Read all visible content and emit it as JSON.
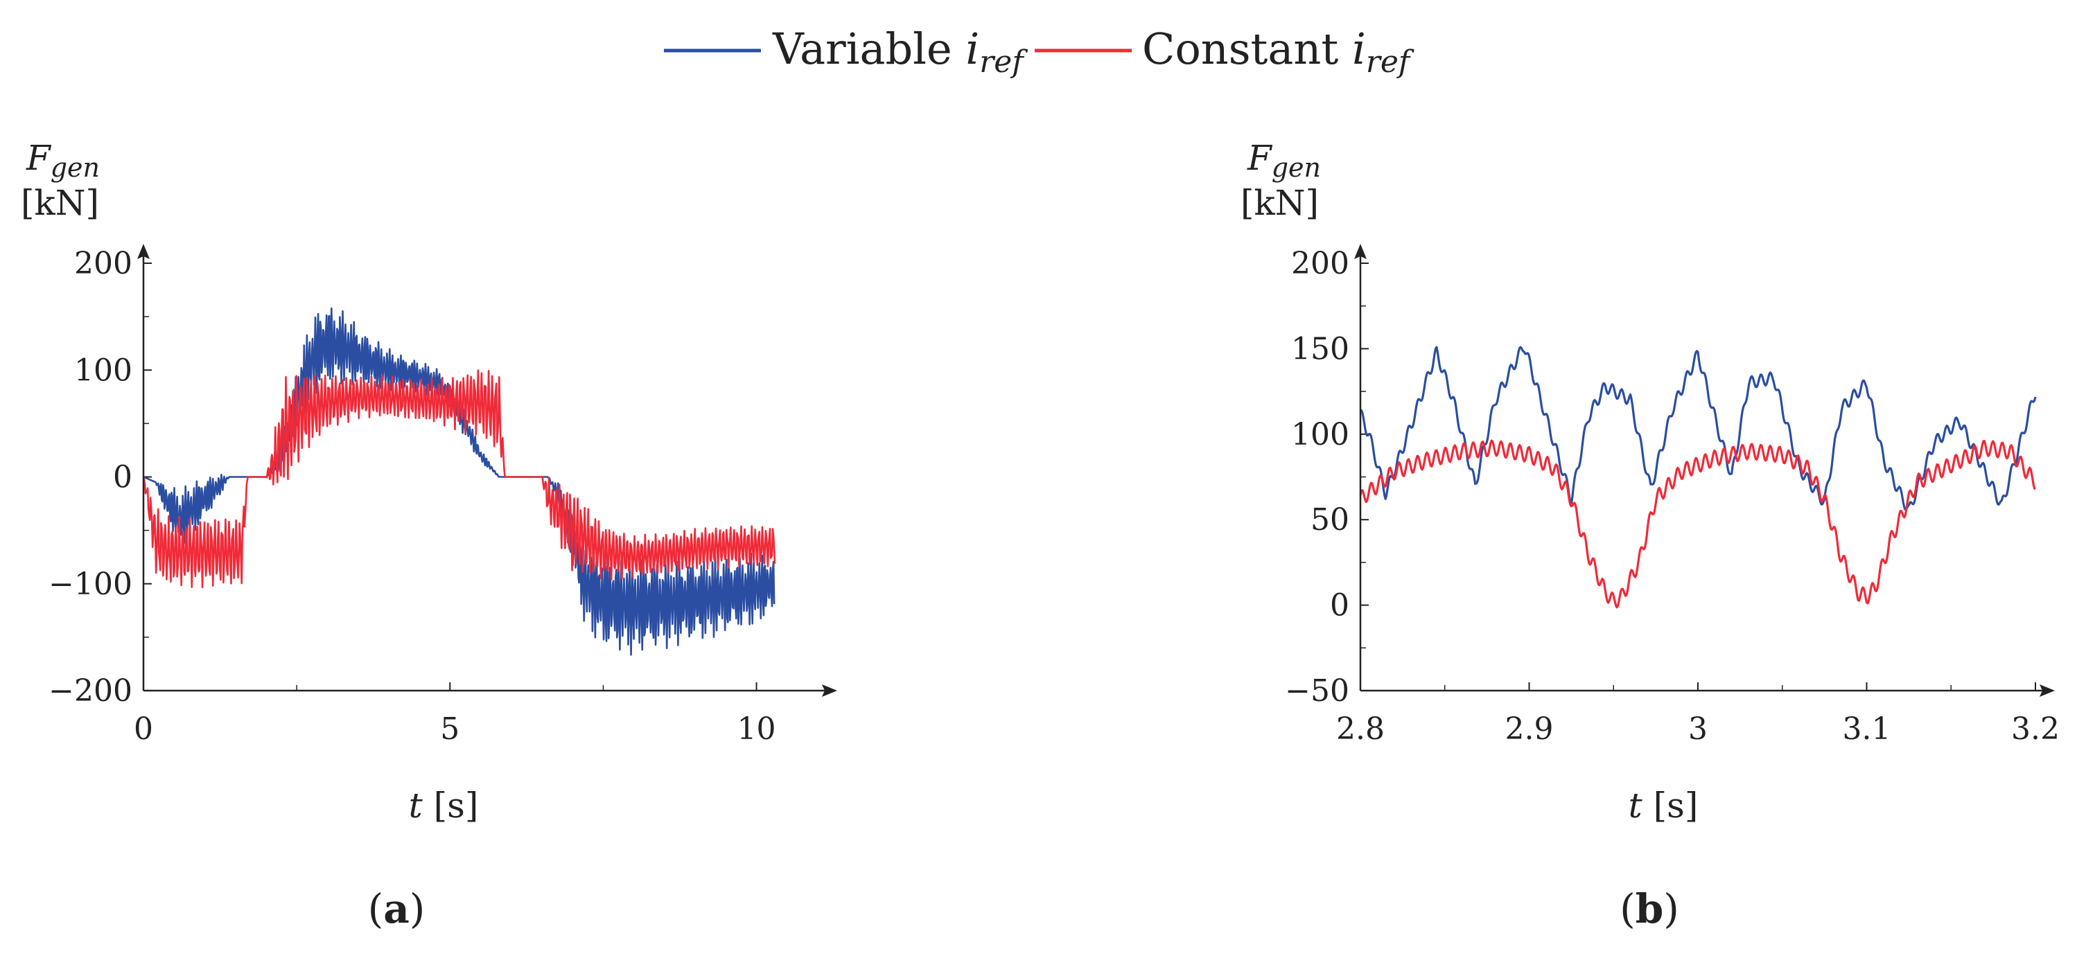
{
  "legend": {
    "entries": [
      {
        "name": "Variable",
        "sub": "ref",
        "var": "i",
        "color": "#2b4ea2"
      },
      {
        "name": "Constant",
        "sub": "ref",
        "var": "i",
        "color": "#f02a38"
      }
    ]
  },
  "chart_data": [
    {
      "type": "line",
      "panel_label": "a",
      "ylabel_var": "F",
      "ylabel_sub": "gen",
      "ylabel_unit": "[kN]",
      "xlabel_var": "t",
      "xlabel_unit": "[s]",
      "xlim": [
        0,
        11
      ],
      "ylim": [
        -200,
        200
      ],
      "xticks": [
        0,
        5,
        10
      ],
      "xtick_labels": [
        "0",
        "5",
        "10"
      ],
      "yticks": [
        -200,
        -100,
        0,
        100,
        200
      ],
      "ytick_labels": [
        "−200",
        "−100",
        "0",
        "100",
        "200"
      ],
      "series": [
        {
          "name": "Variable i_ref",
          "color": "#2b4ea2",
          "x": [
            0,
            0.2,
            0.4,
            0.6,
            0.8,
            1.0,
            1.2,
            1.4,
            1.6,
            1.8,
            2.0,
            2.2,
            2.4,
            2.6,
            2.8,
            3.0,
            3.3,
            3.6,
            4.0,
            4.4,
            4.8,
            5.0,
            5.2,
            5.5,
            5.8,
            6.0,
            6.3,
            6.6,
            6.8,
            7.0,
            7.2,
            7.5,
            8.0,
            8.5,
            9.0,
            9.5,
            10.0,
            10.3
          ],
          "values": [
            0,
            -5,
            -25,
            -40,
            -30,
            -20,
            -10,
            0,
            0,
            0,
            0,
            15,
            50,
            90,
            115,
            125,
            120,
            110,
            100,
            95,
            88,
            75,
            55,
            20,
            0,
            0,
            0,
            0,
            -20,
            -60,
            -100,
            -115,
            -120,
            -118,
            -115,
            -110,
            -105,
            -100
          ],
          "band": [
            0,
            0,
            15,
            20,
            20,
            15,
            10,
            0,
            0,
            0,
            0,
            10,
            20,
            25,
            30,
            30,
            25,
            20,
            15,
            12,
            10,
            10,
            10,
            5,
            0,
            0,
            0,
            0,
            10,
            20,
            30,
            35,
            35,
            32,
            30,
            28,
            25,
            20
          ]
        },
        {
          "name": "Constant i_ref",
          "color": "#f02a38",
          "x": [
            0,
            0.2,
            0.4,
            0.8,
            1.2,
            1.6,
            1.7,
            2.0,
            2.1,
            2.3,
            2.6,
            3.0,
            3.5,
            4.0,
            4.5,
            5.0,
            5.5,
            5.8,
            5.9,
            6.5,
            6.6,
            7.0,
            7.5,
            8.0,
            8.5,
            9.0,
            9.5,
            10.0,
            10.3
          ],
          "values": [
            0,
            -60,
            -70,
            -70,
            -70,
            -70,
            0,
            0,
            10,
            40,
            60,
            70,
            75,
            75,
            72,
            70,
            70,
            60,
            0,
            0,
            -20,
            -50,
            -70,
            -75,
            -72,
            -68,
            -65,
            -65,
            -65
          ],
          "band": [
            0,
            25,
            25,
            25,
            25,
            25,
            0,
            0,
            15,
            40,
            30,
            20,
            15,
            15,
            15,
            18,
            25,
            30,
            0,
            0,
            15,
            30,
            20,
            15,
            15,
            15,
            15,
            15,
            15
          ]
        }
      ]
    },
    {
      "type": "line",
      "panel_label": "b",
      "ylabel_var": "F",
      "ylabel_sub": "gen",
      "ylabel_unit": "[kN]",
      "xlabel_var": "t",
      "xlabel_unit": "[s]",
      "xlim": [
        2.8,
        3.2
      ],
      "ylim": [
        -50,
        200
      ],
      "xticks": [
        2.8,
        2.9,
        3.0,
        3.1,
        3.2
      ],
      "xtick_labels": [
        "2.8",
        "2.9",
        "3",
        "3.1",
        "3.2"
      ],
      "yticks": [
        -50,
        0,
        50,
        100,
        150,
        200
      ],
      "ytick_labels": [
        "−50",
        "0",
        "50",
        "100",
        "150",
        "200"
      ],
      "series": [
        {
          "name": "Variable i_ref",
          "color": "#2b4ea2",
          "x": [
            2.8,
            2.805,
            2.815,
            2.83,
            2.845,
            2.855,
            2.868,
            2.88,
            2.897,
            2.91,
            2.925,
            2.935,
            2.945,
            2.96,
            2.972,
            2.985,
            3.0,
            3.01,
            3.02,
            3.03,
            3.045,
            3.06,
            3.075,
            3.085,
            3.1,
            3.11,
            3.125,
            3.14,
            3.155,
            3.165,
            3.18,
            3.2
          ],
          "values": [
            112,
            100,
            65,
            105,
            148,
            120,
            70,
            120,
            152,
            110,
            62,
            110,
            128,
            120,
            68,
            115,
            147,
            110,
            75,
            130,
            133,
            80,
            60,
            115,
            130,
            85,
            55,
            95,
            108,
            88,
            58,
            125
          ]
        },
        {
          "name": "Constant i_ref",
          "color": "#f02a38",
          "x": [
            2.8,
            2.82,
            2.84,
            2.86,
            2.88,
            2.9,
            2.915,
            2.925,
            2.935,
            2.945,
            2.95,
            2.955,
            2.965,
            2.975,
            2.99,
            3.01,
            3.03,
            3.05,
            3.065,
            3.075,
            3.085,
            3.095,
            3.1,
            3.105,
            3.115,
            3.13,
            3.15,
            3.17,
            3.185,
            3.2
          ],
          "values": [
            62,
            78,
            85,
            90,
            92,
            88,
            80,
            62,
            30,
            8,
            2,
            5,
            25,
            62,
            78,
            86,
            90,
            88,
            80,
            62,
            28,
            7,
            5,
            10,
            40,
            72,
            82,
            92,
            90,
            72
          ]
        }
      ]
    }
  ]
}
